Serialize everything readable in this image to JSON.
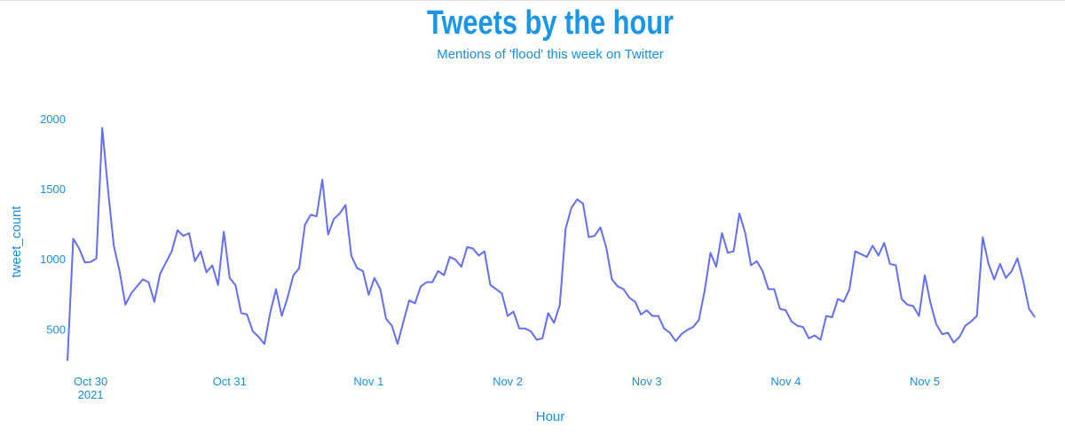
{
  "chart_data": {
    "type": "line",
    "title": "Tweets by the hour",
    "subtitle": "Mentions of 'flood' this week on Twitter",
    "x_label": "Hour",
    "y_label": "tweet_count",
    "x": [
      "2021-10-29 20:00",
      "2021-10-29 21:00",
      "2021-10-29 22:00",
      "2021-10-29 23:00",
      "2021-10-30 00:00",
      "2021-10-30 01:00",
      "2021-10-30 02:00",
      "2021-10-30 03:00",
      "2021-10-30 04:00",
      "2021-10-30 05:00",
      "2021-10-30 06:00",
      "2021-10-30 07:00",
      "2021-10-30 08:00",
      "2021-10-30 09:00",
      "2021-10-30 10:00",
      "2021-10-30 11:00",
      "2021-10-30 12:00",
      "2021-10-30 13:00",
      "2021-10-30 14:00",
      "2021-10-30 15:00",
      "2021-10-30 16:00",
      "2021-10-30 17:00",
      "2021-10-30 18:00",
      "2021-10-30 19:00",
      "2021-10-30 20:00",
      "2021-10-30 21:00",
      "2021-10-30 22:00",
      "2021-10-30 23:00",
      "2021-10-31 00:00",
      "2021-10-31 01:00",
      "2021-10-31 02:00",
      "2021-10-31 03:00",
      "2021-10-31 04:00",
      "2021-10-31 05:00",
      "2021-10-31 06:00",
      "2021-10-31 07:00",
      "2021-10-31 08:00",
      "2021-10-31 09:00",
      "2021-10-31 10:00",
      "2021-10-31 11:00",
      "2021-10-31 12:00",
      "2021-10-31 13:00",
      "2021-10-31 14:00",
      "2021-10-31 15:00",
      "2021-10-31 16:00",
      "2021-10-31 17:00",
      "2021-10-31 18:00",
      "2021-10-31 19:00",
      "2021-10-31 20:00",
      "2021-10-31 21:00",
      "2021-10-31 22:00",
      "2021-10-31 23:00",
      "2021-11-01 00:00",
      "2021-11-01 01:00",
      "2021-11-01 02:00",
      "2021-11-01 03:00",
      "2021-11-01 04:00",
      "2021-11-01 05:00",
      "2021-11-01 06:00",
      "2021-11-01 07:00",
      "2021-11-01 08:00",
      "2021-11-01 09:00",
      "2021-11-01 10:00",
      "2021-11-01 11:00",
      "2021-11-01 12:00",
      "2021-11-01 13:00",
      "2021-11-01 14:00",
      "2021-11-01 15:00",
      "2021-11-01 16:00",
      "2021-11-01 17:00",
      "2021-11-01 18:00",
      "2021-11-01 19:00",
      "2021-11-01 20:00",
      "2021-11-01 21:00",
      "2021-11-01 22:00",
      "2021-11-01 23:00",
      "2021-11-02 00:00",
      "2021-11-02 01:00",
      "2021-11-02 02:00",
      "2021-11-02 03:00",
      "2021-11-02 04:00",
      "2021-11-02 05:00",
      "2021-11-02 06:00",
      "2021-11-02 07:00",
      "2021-11-02 08:00",
      "2021-11-02 09:00",
      "2021-11-02 10:00",
      "2021-11-02 11:00",
      "2021-11-02 12:00",
      "2021-11-02 13:00",
      "2021-11-02 14:00",
      "2021-11-02 15:00",
      "2021-11-02 16:00",
      "2021-11-02 17:00",
      "2021-11-02 18:00",
      "2021-11-02 19:00",
      "2021-11-02 20:00",
      "2021-11-02 21:00",
      "2021-11-02 22:00",
      "2021-11-02 23:00",
      "2021-11-03 00:00",
      "2021-11-03 01:00",
      "2021-11-03 02:00",
      "2021-11-03 03:00",
      "2021-11-03 04:00",
      "2021-11-03 05:00",
      "2021-11-03 06:00",
      "2021-11-03 07:00",
      "2021-11-03 08:00",
      "2021-11-03 09:00",
      "2021-11-03 10:00",
      "2021-11-03 11:00",
      "2021-11-03 12:00",
      "2021-11-03 13:00",
      "2021-11-03 14:00",
      "2021-11-03 15:00",
      "2021-11-03 16:00",
      "2021-11-03 17:00",
      "2021-11-03 18:00",
      "2021-11-03 19:00",
      "2021-11-03 20:00",
      "2021-11-03 21:00",
      "2021-11-03 22:00",
      "2021-11-03 23:00",
      "2021-11-04 00:00",
      "2021-11-04 01:00",
      "2021-11-04 02:00",
      "2021-11-04 03:00",
      "2021-11-04 04:00",
      "2021-11-04 05:00",
      "2021-11-04 06:00",
      "2021-11-04 07:00",
      "2021-11-04 08:00",
      "2021-11-04 09:00",
      "2021-11-04 10:00",
      "2021-11-04 11:00",
      "2021-11-04 12:00",
      "2021-11-04 13:00",
      "2021-11-04 14:00",
      "2021-11-04 15:00",
      "2021-11-04 16:00",
      "2021-11-04 17:00",
      "2021-11-04 18:00",
      "2021-11-04 19:00",
      "2021-11-04 20:00",
      "2021-11-04 21:00",
      "2021-11-04 22:00",
      "2021-11-04 23:00",
      "2021-11-05 00:00",
      "2021-11-05 01:00",
      "2021-11-05 02:00",
      "2021-11-05 03:00",
      "2021-11-05 04:00",
      "2021-11-05 05:00",
      "2021-11-05 06:00",
      "2021-11-05 07:00",
      "2021-11-05 08:00",
      "2021-11-05 09:00",
      "2021-11-05 10:00",
      "2021-11-05 11:00",
      "2021-11-05 12:00",
      "2021-11-05 13:00",
      "2021-11-05 14:00",
      "2021-11-05 15:00",
      "2021-11-05 16:00",
      "2021-11-05 17:00",
      "2021-11-05 18:00",
      "2021-11-05 19:00"
    ],
    "series": [
      {
        "name": "tweet_count",
        "color": "#636efa",
        "values": [
          280,
          1150,
          1080,
          980,
          985,
          1010,
          1940,
          1500,
          1100,
          920,
          680,
          760,
          810,
          860,
          840,
          700,
          900,
          980,
          1060,
          1210,
          1170,
          1190,
          990,
          1060,
          910,
          960,
          820,
          1200,
          870,
          820,
          620,
          610,
          490,
          450,
          400,
          620,
          790,
          600,
          730,
          890,
          940,
          1250,
          1320,
          1310,
          1570,
          1180,
          1290,
          1330,
          1390,
          1030,
          940,
          920,
          750,
          870,
          790,
          580,
          530,
          400,
          560,
          710,
          690,
          810,
          840,
          840,
          920,
          890,
          1020,
          1000,
          950,
          1090,
          1080,
          1030,
          1060,
          820,
          790,
          760,
          600,
          630,
          510,
          510,
          490,
          430,
          440,
          620,
          550,
          680,
          1220,
          1370,
          1430,
          1400,
          1160,
          1170,
          1230,
          1090,
          860,
          810,
          790,
          730,
          700,
          610,
          640,
          600,
          600,
          510,
          480,
          420,
          470,
          500,
          520,
          570,
          780,
          1050,
          950,
          1190,
          1050,
          1060,
          1330,
          1190,
          960,
          990,
          920,
          790,
          790,
          650,
          640,
          560,
          530,
          520,
          440,
          460,
          430,
          600,
          590,
          720,
          700,
          790,
          1060,
          1040,
          1020,
          1100,
          1030,
          1120,
          970,
          960,
          720,
          680,
          670,
          600,
          890,
          690,
          540,
          470,
          480,
          410,
          450,
          530,
          560,
          600,
          1160,
          970,
          860,
          970,
          870,
          920,
          1010,
          850,
          650,
          590
        ]
      }
    ],
    "xlim": [
      "2021-10-29 20:00",
      "2021-11-05 19:00"
    ],
    "xticks": [
      {
        "value": "2021-10-30 00:00",
        "label": "Oct 30"
      },
      {
        "value": "2021-10-31 00:00",
        "label": "Oct 31"
      },
      {
        "value": "2021-11-01 00:00",
        "label": "Nov 1"
      },
      {
        "value": "2021-11-02 00:00",
        "label": "Nov 2"
      },
      {
        "value": "2021-11-03 00:00",
        "label": "Nov 3"
      },
      {
        "value": "2021-11-04 00:00",
        "label": "Nov 4"
      },
      {
        "value": "2021-11-05 00:00",
        "label": "Nov 5"
      }
    ],
    "xtick_year": "2021",
    "ylim": [
      250,
      2030
    ],
    "yticks": [
      500,
      1000,
      1500,
      2000
    ],
    "grid": false
  }
}
